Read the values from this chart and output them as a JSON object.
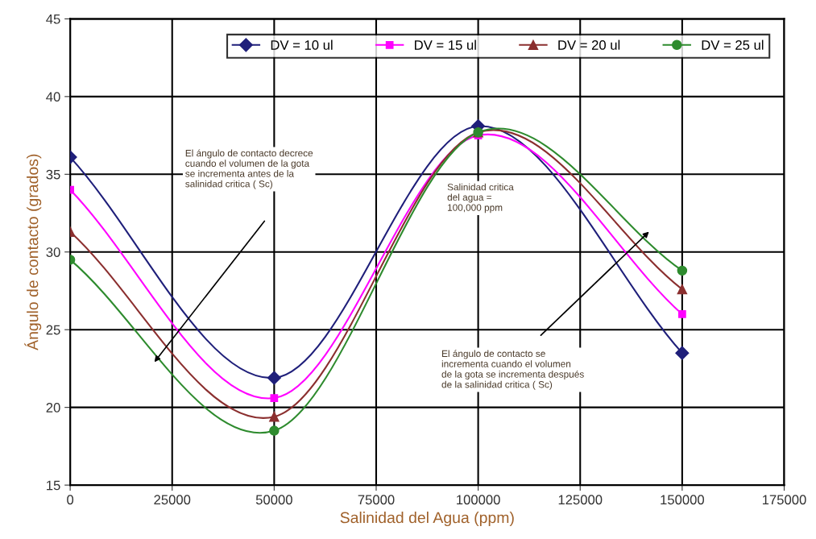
{
  "chart_data": {
    "type": "line",
    "xlabel": "Salinidad del Agua (ppm)",
    "ylabel": "Ángulo de contacto (grados)",
    "x": [
      0,
      50000,
      100000,
      150000
    ],
    "series": [
      {
        "name": "DV = 10 ul",
        "color": "#1f1f7a",
        "marker": "diamond",
        "values": [
          36.1,
          21.9,
          38.1,
          23.5
        ]
      },
      {
        "name": "DV = 15 ul",
        "color": "#ff00ff",
        "marker": "square",
        "values": [
          34.0,
          20.6,
          37.5,
          26.0
        ]
      },
      {
        "name": "DV = 20 ul",
        "color": "#8b2f2f",
        "marker": "triangle",
        "values": [
          31.3,
          19.4,
          37.7,
          27.6
        ]
      },
      {
        "name": "DV = 25 ul",
        "color": "#2e8b2e",
        "marker": "circle",
        "values": [
          29.5,
          18.5,
          37.7,
          28.8
        ]
      }
    ],
    "xlim": [
      0,
      175000
    ],
    "xticks": [
      0,
      25000,
      50000,
      75000,
      100000,
      125000,
      150000,
      175000
    ],
    "ylim": [
      15,
      45
    ],
    "yticks": [
      15,
      20,
      25,
      30,
      35,
      40,
      45
    ],
    "grid": true,
    "legend": "top right",
    "annotations": [
      "El ángulo de contacto decrece\ncuando el volumen de la gota\nse incrementa antes de la\nsalinidad critica ( Sc)",
      "Salinidad critica\ndel agua =\n100,000 ppm",
      "El ángulo de contacto se\nincrementa cuando el volumen\nde la gota se incrementa después\nde la salinidad critica ( Sc)"
    ]
  }
}
